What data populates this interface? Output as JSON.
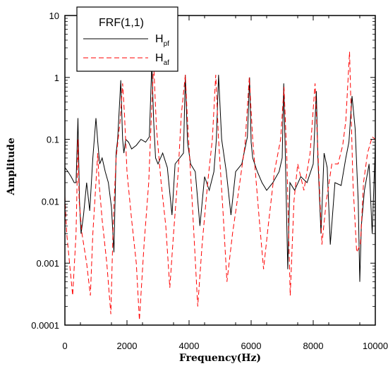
{
  "chart_data": {
    "type": "line",
    "xlabel": "Frequency(Hz)",
    "ylabel": "Amplitude",
    "xlim": [
      0,
      10000
    ],
    "ylim": [
      0.0001,
      10
    ],
    "yscale": "log",
    "grid": false,
    "legend_position": "top-left",
    "x_ticks": [
      "0",
      "2000",
      "4000",
      "6000",
      "8000",
      "10000"
    ],
    "y_ticks": [
      "0.0001",
      "0.001",
      "0.01",
      "0.1",
      "1",
      "10"
    ],
    "legend": {
      "title": "FRF(1,1)",
      "entries": [
        {
          "main": "H",
          "sub": "pf",
          "color": "#000000",
          "style": "solid"
        },
        {
          "main": "H",
          "sub": "af",
          "color": "#ff0000",
          "style": "dashed"
        }
      ]
    },
    "series": [
      {
        "legend_index": 0,
        "color": "#000000",
        "dash": "none",
        "x": [
          0,
          100,
          200,
          300,
          360,
          420,
          470,
          520,
          600,
          700,
          800,
          900,
          1000,
          1060,
          1120,
          1200,
          1300,
          1400,
          1500,
          1580,
          1650,
          1700,
          1800,
          1860,
          1900,
          1960,
          2050,
          2150,
          2300,
          2450,
          2600,
          2720,
          2800,
          2860,
          2920,
          3000,
          3150,
          3300,
          3450,
          3550,
          3700,
          3820,
          3880,
          3950,
          4050,
          4200,
          4350,
          4500,
          4650,
          4800,
          4880,
          4950,
          5050,
          5200,
          5350,
          5500,
          5700,
          5880,
          5950,
          6000,
          6050,
          6200,
          6350,
          6500,
          6700,
          6900,
          7000,
          7050,
          7100,
          7180,
          7250,
          7400,
          7600,
          7800,
          8000,
          8100,
          8150,
          8250,
          8350,
          8450,
          8550,
          8700,
          8900,
          9050,
          9150,
          9250,
          9350,
          9450,
          9500,
          9550,
          9650,
          9800,
          9900,
          10000
        ],
        "y": [
          0.035,
          0.03,
          0.025,
          0.02,
          0.02,
          0.22,
          0.01,
          0.003,
          0.006,
          0.02,
          0.007,
          0.05,
          0.22,
          0.09,
          0.04,
          0.05,
          0.03,
          0.02,
          0.008,
          0.0015,
          0.06,
          0.1,
          0.9,
          0.1,
          0.06,
          0.1,
          0.09,
          0.07,
          0.08,
          0.1,
          0.09,
          0.11,
          1.7,
          0.2,
          0.05,
          0.04,
          0.06,
          0.035,
          0.006,
          0.04,
          0.05,
          0.06,
          1.1,
          0.09,
          0.04,
          0.03,
          0.004,
          0.025,
          0.015,
          0.03,
          0.1,
          1.1,
          0.1,
          0.03,
          0.006,
          0.03,
          0.04,
          0.11,
          1.0,
          0.09,
          0.05,
          0.03,
          0.02,
          0.015,
          0.02,
          0.03,
          0.05,
          0.8,
          0.06,
          0.0008,
          0.02,
          0.015,
          0.025,
          0.02,
          0.04,
          0.6,
          0.05,
          0.003,
          0.06,
          0.035,
          0.002,
          0.02,
          0.018,
          0.05,
          0.09,
          0.5,
          0.15,
          0.01,
          0.0005,
          0.004,
          0.015,
          0.04,
          0.003,
          0.08
        ]
      },
      {
        "legend_index": 1,
        "color": "#ff0000",
        "dash": "7,4",
        "x": [
          0,
          60,
          150,
          250,
          360,
          420,
          460,
          550,
          700,
          820,
          900,
          1000,
          1060,
          1100,
          1200,
          1350,
          1480,
          1560,
          1650,
          1780,
          1860,
          1920,
          2000,
          2150,
          2300,
          2400,
          2550,
          2700,
          2780,
          2860,
          2950,
          3100,
          3250,
          3380,
          3500,
          3650,
          3750,
          3880,
          3950,
          4100,
          4280,
          4420,
          4600,
          4750,
          4860,
          4950,
          5100,
          5220,
          5400,
          5600,
          5800,
          5940,
          6050,
          6250,
          6400,
          6550,
          6750,
          6950,
          7060,
          7150,
          7260,
          7380,
          7500,
          7700,
          7900,
          8060,
          8160,
          8280,
          8420,
          8600,
          8800,
          8950,
          9050,
          9170,
          9280,
          9400,
          9520,
          9620,
          9750,
          9900,
          10000
        ],
        "y": [
          0.012,
          0.003,
          0.001,
          0.0003,
          0.003,
          0.1,
          0.01,
          0.003,
          0.001,
          0.0003,
          0.003,
          0.02,
          0.06,
          0.02,
          0.005,
          0.001,
          0.00015,
          0.005,
          0.05,
          0.2,
          0.8,
          0.25,
          0.03,
          0.005,
          0.001,
          0.00012,
          0.002,
          0.02,
          0.2,
          1.7,
          0.15,
          0.02,
          0.004,
          0.0004,
          0.003,
          0.03,
          0.25,
          1.1,
          0.2,
          0.01,
          0.0002,
          0.002,
          0.02,
          0.1,
          1.1,
          0.1,
          0.006,
          0.0005,
          0.003,
          0.015,
          0.08,
          1.0,
          0.1,
          0.006,
          0.0008,
          0.004,
          0.03,
          0.1,
          0.7,
          0.05,
          0.0003,
          0.01,
          0.04,
          0.015,
          0.06,
          0.8,
          0.05,
          0.002,
          0.01,
          0.04,
          0.04,
          0.08,
          0.2,
          2.6,
          0.02,
          0.0015,
          0.002,
          0.02,
          0.06,
          0.11,
          0.1
        ]
      }
    ]
  }
}
